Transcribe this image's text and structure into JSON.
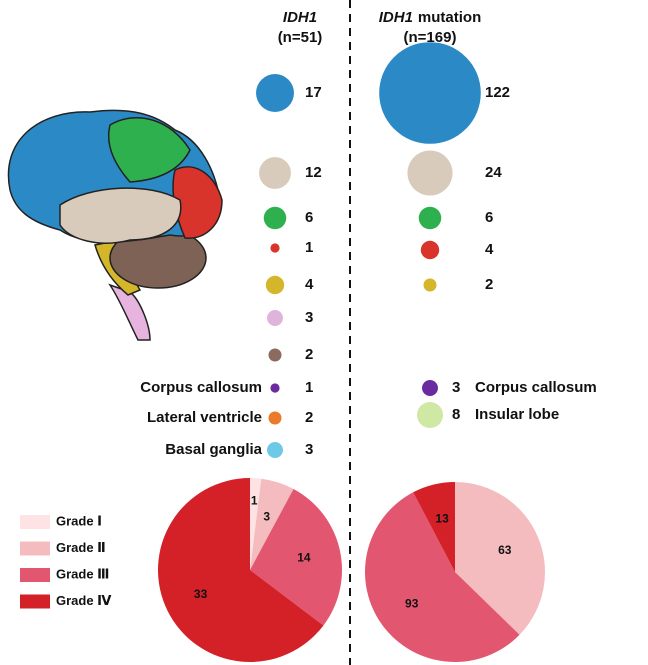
{
  "chart_data": [
    {
      "type": "bubble",
      "title": "IDH1",
      "subtitle": "(n=51)",
      "categories": [
        null,
        null,
        null,
        null,
        null,
        null,
        null,
        "Corpus callosum",
        "Lateral ventricle",
        "Basal ganglia"
      ],
      "values": [
        17,
        12,
        6,
        1,
        4,
        3,
        2,
        1,
        2,
        3
      ],
      "colors": [
        "#2b8ac6",
        "#d8cbbb",
        "#2fb04e",
        "#d9342c",
        "#d4b62b",
        "#e0b3dc",
        "#8b6b5e",
        "#6a2aa0",
        "#ec7a2b",
        "#6ec9e6"
      ]
    },
    {
      "type": "bubble",
      "title": "IDH1",
      "title_suffix": "mutation",
      "subtitle": "(n=169)",
      "categories": [
        null,
        null,
        null,
        null,
        null,
        "Corpus callosum",
        "Insular lobe"
      ],
      "values": [
        122,
        24,
        6,
        4,
        2,
        3,
        8
      ],
      "colors": [
        "#2b8ac6",
        "#d8cbbb",
        "#2fb04e",
        "#d9342c",
        "#d4b62b",
        "#6a2aa0",
        "#cfe8a4"
      ]
    },
    {
      "type": "pie",
      "values": [
        1,
        3,
        14,
        33
      ],
      "colors": [
        "#fde3e3",
        "#f5bcc0",
        "#e25670",
        "#d42027"
      ]
    },
    {
      "type": "pie",
      "values": [
        63,
        93,
        13
      ],
      "colors": [
        "#f5bcc0",
        "#e25670",
        "#d42027"
      ]
    }
  ],
  "legend": {
    "labels": [
      "Grade Ⅰ",
      "Grade Ⅱ",
      "Grade Ⅲ",
      "Grade Ⅳ"
    ],
    "colors": [
      "#fde3e3",
      "#f5bcc0",
      "#e25670",
      "#d42027"
    ]
  }
}
